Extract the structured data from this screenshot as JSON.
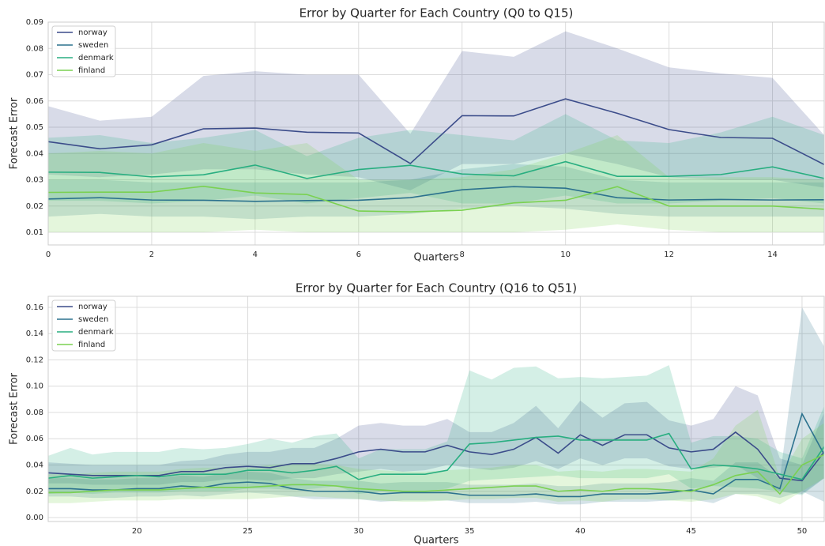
{
  "chart_data": [
    {
      "type": "line",
      "title": "Error by Quarter for Each Country (Q0 to Q15)",
      "x_label": "Quarters",
      "y_label": "Forecast Error",
      "x": [
        0,
        1,
        2,
        3,
        4,
        5,
        6,
        7,
        8,
        9,
        10,
        11,
        12,
        13,
        14,
        15
      ],
      "xlim": [
        0,
        15
      ],
      "ylim": [
        0.0052,
        0.09
      ],
      "xticks": [
        0,
        2,
        4,
        6,
        8,
        10,
        12,
        14
      ],
      "yticks": [
        0.01,
        0.02,
        0.03,
        0.04,
        0.05,
        0.06,
        0.07,
        0.08,
        0.09
      ],
      "grid": true,
      "legend": "upper left",
      "series": [
        {
          "name": "norway",
          "color": "#3b4c8a",
          "values": [
            0.0445,
            0.0418,
            0.0433,
            0.0494,
            0.0497,
            0.0481,
            0.0478,
            0.0362,
            0.0544,
            0.0543,
            0.0608,
            0.0553,
            0.0491,
            0.0461,
            0.0458,
            0.0358
          ],
          "upper": [
            0.058,
            0.0525,
            0.054,
            0.0695,
            0.0713,
            0.07,
            0.07,
            0.0475,
            0.079,
            0.0768,
            0.0865,
            0.08,
            0.0728,
            0.0705,
            0.0688,
            0.047
          ],
          "lower": [
            0.032,
            0.031,
            0.032,
            0.034,
            0.034,
            0.032,
            0.031,
            0.026,
            0.036,
            0.036,
            0.04,
            0.036,
            0.031,
            0.03,
            0.03,
            0.027
          ]
        },
        {
          "name": "sweden",
          "color": "#2c728e",
          "values": [
            0.0227,
            0.0232,
            0.0223,
            0.0222,
            0.0218,
            0.0221,
            0.0222,
            0.0232,
            0.0262,
            0.0274,
            0.0268,
            0.0232,
            0.0223,
            0.0225,
            0.0223,
            0.0224
          ],
          "upper": [
            0.03,
            0.03,
            0.029,
            0.029,
            0.029,
            0.029,
            0.029,
            0.03,
            0.034,
            0.036,
            0.035,
            0.03,
            0.029,
            0.029,
            0.029,
            0.029
          ],
          "lower": [
            0.016,
            0.017,
            0.016,
            0.016,
            0.015,
            0.016,
            0.016,
            0.017,
            0.019,
            0.02,
            0.019,
            0.017,
            0.016,
            0.016,
            0.016,
            0.016
          ]
        },
        {
          "name": "denmark",
          "color": "#28ae80",
          "values": [
            0.0329,
            0.0328,
            0.0311,
            0.0319,
            0.0356,
            0.0305,
            0.0339,
            0.0355,
            0.0322,
            0.0315,
            0.0369,
            0.0313,
            0.0313,
            0.032,
            0.0349,
            0.0305
          ],
          "upper": [
            0.046,
            0.047,
            0.044,
            0.046,
            0.049,
            0.039,
            0.046,
            0.049,
            0.047,
            0.045,
            0.055,
            0.045,
            0.044,
            0.048,
            0.054,
            0.047
          ],
          "lower": [
            0.022,
            0.022,
            0.021,
            0.022,
            0.024,
            0.021,
            0.023,
            0.025,
            0.021,
            0.021,
            0.024,
            0.021,
            0.021,
            0.022,
            0.023,
            0.021
          ]
        },
        {
          "name": "finland",
          "color": "#7ad151",
          "values": [
            0.0252,
            0.0253,
            0.0253,
            0.0275,
            0.025,
            0.0244,
            0.0181,
            0.0178,
            0.0184,
            0.0212,
            0.0222,
            0.0274,
            0.02,
            0.02,
            0.02,
            0.0188
          ],
          "upper": [
            0.04,
            0.041,
            0.04,
            0.044,
            0.041,
            0.044,
            0.03,
            0.03,
            0.031,
            0.034,
            0.04,
            0.047,
            0.031,
            0.031,
            0.031,
            0.03
          ],
          "lower": [
            0.01,
            0.01,
            0.01,
            0.01,
            0.011,
            0.01,
            0.01,
            0.01,
            0.01,
            0.01,
            0.011,
            0.013,
            0.011,
            0.01,
            0.01,
            0.01
          ]
        }
      ]
    },
    {
      "type": "line",
      "title": "Error by Quarter for Each Country (Q16 to Q51)",
      "x_label": "Quarters",
      "y_label": "Forecast Error",
      "x": [
        16,
        17,
        18,
        19,
        20,
        21,
        22,
        23,
        24,
        25,
        26,
        27,
        28,
        29,
        30,
        31,
        32,
        33,
        34,
        35,
        36,
        37,
        38,
        39,
        40,
        41,
        42,
        43,
        44,
        45,
        46,
        47,
        48,
        49,
        50,
        51
      ],
      "xlim": [
        16,
        51
      ],
      "ylim": [
        -0.003,
        0.1684
      ],
      "xticks": [
        20,
        25,
        30,
        35,
        40,
        45,
        50
      ],
      "yticks": [
        {
          "value": 0,
          "label": "0.00"
        },
        0.02,
        0.04,
        0.06,
        0.08,
        {
          "value": 0.1,
          "label": "0.10"
        },
        0.12,
        0.14,
        0.16
      ],
      "grid": true,
      "legend": "upper left",
      "series": [
        {
          "name": "norway",
          "color": "#3b4c8a",
          "values": [
            0.034,
            0.033,
            0.032,
            0.032,
            0.032,
            0.032,
            0.035,
            0.035,
            0.038,
            0.039,
            0.038,
            0.041,
            0.041,
            0.045,
            0.05,
            0.052,
            0.05,
            0.05,
            0.055,
            0.05,
            0.048,
            0.052,
            0.061,
            0.049,
            0.063,
            0.055,
            0.063,
            0.063,
            0.053,
            0.05,
            0.052,
            0.065,
            0.052,
            0.03,
            0.028,
            0.05
          ],
          "upper": [
            0.042,
            0.041,
            0.04,
            0.04,
            0.04,
            0.04,
            0.043,
            0.044,
            0.048,
            0.05,
            0.05,
            0.053,
            0.053,
            0.06,
            0.07,
            0.072,
            0.07,
            0.07,
            0.075,
            0.065,
            0.065,
            0.072,
            0.085,
            0.068,
            0.089,
            0.076,
            0.087,
            0.088,
            0.074,
            0.07,
            0.075,
            0.1,
            0.093,
            0.045,
            0.04,
            0.08
          ],
          "lower": [
            0.026,
            0.026,
            0.025,
            0.025,
            0.025,
            0.025,
            0.027,
            0.027,
            0.029,
            0.029,
            0.028,
            0.03,
            0.03,
            0.033,
            0.035,
            0.037,
            0.035,
            0.036,
            0.04,
            0.038,
            0.036,
            0.038,
            0.043,
            0.037,
            0.045,
            0.04,
            0.045,
            0.045,
            0.039,
            0.037,
            0.038,
            0.04,
            0.03,
            0.02,
            0.018,
            0.03
          ]
        },
        {
          "name": "sweden",
          "color": "#2c728e",
          "values": [
            0.022,
            0.022,
            0.021,
            0.021,
            0.022,
            0.022,
            0.024,
            0.023,
            0.026,
            0.027,
            0.026,
            0.022,
            0.02,
            0.02,
            0.02,
            0.018,
            0.019,
            0.019,
            0.019,
            0.017,
            0.017,
            0.017,
            0.018,
            0.016,
            0.016,
            0.018,
            0.018,
            0.018,
            0.019,
            0.021,
            0.018,
            0.029,
            0.029,
            0.022,
            0.079,
            0.048
          ],
          "upper": [
            0.03,
            0.03,
            0.029,
            0.029,
            0.03,
            0.03,
            0.032,
            0.031,
            0.034,
            0.035,
            0.034,
            0.03,
            0.028,
            0.028,
            0.028,
            0.026,
            0.027,
            0.027,
            0.027,
            0.025,
            0.025,
            0.025,
            0.026,
            0.024,
            0.024,
            0.026,
            0.026,
            0.026,
            0.027,
            0.03,
            0.028,
            0.042,
            0.042,
            0.03,
            0.16,
            0.13
          ],
          "lower": [
            0.016,
            0.016,
            0.015,
            0.015,
            0.016,
            0.016,
            0.017,
            0.016,
            0.018,
            0.019,
            0.018,
            0.016,
            0.014,
            0.014,
            0.014,
            0.012,
            0.013,
            0.013,
            0.013,
            0.011,
            0.011,
            0.011,
            0.012,
            0.01,
            0.01,
            0.012,
            0.012,
            0.012,
            0.013,
            0.014,
            0.011,
            0.018,
            0.018,
            0.015,
            0.02,
            0.012
          ]
        },
        {
          "name": "denmark",
          "color": "#28ae80",
          "values": [
            0.03,
            0.032,
            0.03,
            0.031,
            0.032,
            0.031,
            0.033,
            0.033,
            0.033,
            0.036,
            0.036,
            0.034,
            0.036,
            0.039,
            0.029,
            0.033,
            0.033,
            0.033,
            0.036,
            0.056,
            0.057,
            0.059,
            0.061,
            0.062,
            0.059,
            0.059,
            0.059,
            0.059,
            0.064,
            0.037,
            0.04,
            0.039,
            0.037,
            0.033,
            0.029,
            0.054
          ],
          "upper": [
            0.047,
            0.053,
            0.048,
            0.05,
            0.05,
            0.05,
            0.053,
            0.052,
            0.053,
            0.056,
            0.06,
            0.057,
            0.062,
            0.064,
            0.045,
            0.052,
            0.052,
            0.052,
            0.058,
            0.112,
            0.105,
            0.114,
            0.115,
            0.106,
            0.107,
            0.106,
            0.107,
            0.108,
            0.116,
            0.057,
            0.062,
            0.062,
            0.06,
            0.05,
            0.045,
            0.085
          ],
          "lower": [
            0.018,
            0.019,
            0.018,
            0.019,
            0.019,
            0.019,
            0.02,
            0.02,
            0.02,
            0.022,
            0.022,
            0.021,
            0.022,
            0.024,
            0.018,
            0.02,
            0.02,
            0.02,
            0.022,
            0.028,
            0.029,
            0.03,
            0.031,
            0.032,
            0.03,
            0.03,
            0.03,
            0.03,
            0.033,
            0.022,
            0.024,
            0.023,
            0.022,
            0.02,
            0.017,
            0.03
          ]
        },
        {
          "name": "finland",
          "color": "#7ad151",
          "values": [
            0.019,
            0.019,
            0.02,
            0.021,
            0.021,
            0.021,
            0.022,
            0.023,
            0.023,
            0.023,
            0.024,
            0.025,
            0.025,
            0.024,
            0.022,
            0.021,
            0.02,
            0.02,
            0.021,
            0.022,
            0.023,
            0.024,
            0.024,
            0.02,
            0.021,
            0.02,
            0.022,
            0.022,
            0.021,
            0.02,
            0.025,
            0.032,
            0.035,
            0.018,
            0.04,
            0.048
          ],
          "upper": [
            0.033,
            0.033,
            0.034,
            0.035,
            0.035,
            0.035,
            0.037,
            0.038,
            0.038,
            0.038,
            0.04,
            0.041,
            0.041,
            0.04,
            0.037,
            0.036,
            0.035,
            0.035,
            0.036,
            0.037,
            0.038,
            0.04,
            0.04,
            0.035,
            0.036,
            0.035,
            0.037,
            0.037,
            0.036,
            0.035,
            0.045,
            0.07,
            0.082,
            0.03,
            0.06,
            0.072
          ],
          "lower": [
            0.011,
            0.011,
            0.012,
            0.013,
            0.013,
            0.013,
            0.014,
            0.014,
            0.014,
            0.014,
            0.015,
            0.016,
            0.016,
            0.015,
            0.014,
            0.013,
            0.012,
            0.012,
            0.013,
            0.014,
            0.014,
            0.015,
            0.015,
            0.012,
            0.013,
            0.012,
            0.014,
            0.014,
            0.013,
            0.012,
            0.014,
            0.018,
            0.016,
            0.01,
            0.02,
            0.03
          ]
        }
      ]
    }
  ]
}
